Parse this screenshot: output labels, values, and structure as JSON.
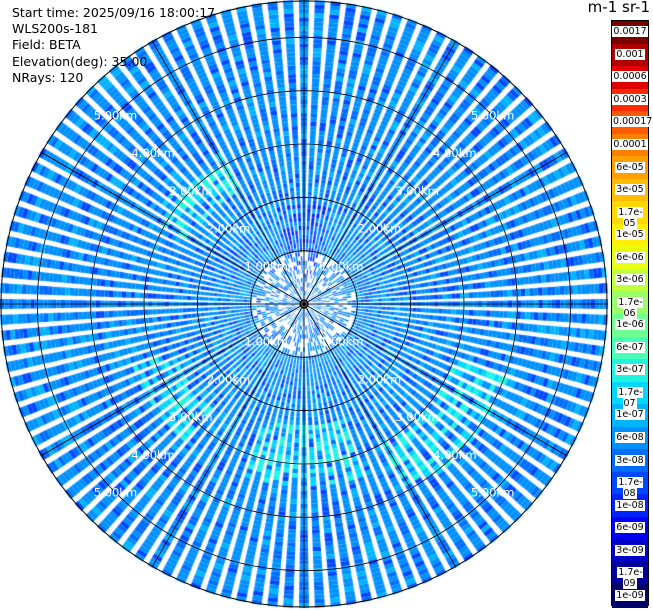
{
  "chart_data": {
    "type": "heatmap",
    "subtype": "radar-ppi",
    "info_lines": [
      "Start time: 2025/09/16 18:00:17",
      "WLS200s-181",
      "Field: BETA",
      "Elevation(deg): 35.00",
      "NRays: 120"
    ],
    "colorbar_title": "m-1 sr-1",
    "colorbar_labels": [
      "0.0017",
      "0.001",
      "0.0006",
      "0.0003",
      "0.00017",
      "0.0001",
      "6e-05",
      "3e-05",
      "1.7e-05",
      "1e-05",
      "6e-06",
      "3e-06",
      "1.7e-06",
      "1e-06",
      "6e-07",
      "3e-07",
      "1.7e-07",
      "1e-07",
      "6e-08",
      "3e-08",
      "1.7e-08",
      "1e-08",
      "6e-09",
      "3e-09",
      "1.7e-09",
      "1e-09"
    ],
    "colorbar_colors": [
      "#7a0000",
      "#b00000",
      "#e00000",
      "#ff2a00",
      "#ff5a00",
      "#ff8000",
      "#ff9f00",
      "#ffbc00",
      "#ffd800",
      "#fff000",
      "#e8ff10",
      "#c0ff40",
      "#98ff68",
      "#70ff90",
      "#48ffb8",
      "#20f4e0",
      "#00d8ff",
      "#00b4ff",
      "#0090ff",
      "#006cff",
      "#0048ff",
      "#0024ff",
      "#0000f4",
      "#0000c8",
      "#00009a",
      "#00006a"
    ],
    "range_rings": [
      {
        "label": "1.00km"
      },
      {
        "label": "2.00km"
      },
      {
        "label": "3.00km"
      },
      {
        "label": "4.00km"
      },
      {
        "label": "5.00km"
      }
    ],
    "max_range_km": 5.7,
    "azimuth_spokes_deg": [
      0,
      30,
      60,
      90,
      120,
      150,
      180,
      210,
      240,
      270,
      300,
      330
    ],
    "n_rays": 120,
    "dominant_value_range": [
      "6e-08",
      "1e-08"
    ],
    "enhanced_regions": [
      {
        "azimuth_start_deg": 110,
        "azimuth_end_deg": 150,
        "range_km": [
          3.0,
          4.0
        ],
        "value": "1e-07"
      },
      {
        "azimuth_start_deg": 160,
        "azimuth_end_deg": 200,
        "range_km": [
          2.2,
          3.4
        ],
        "value": "1e-07"
      },
      {
        "azimuth_start_deg": 220,
        "azimuth_end_deg": 250,
        "range_km": [
          2.6,
          3.4
        ],
        "value": "1e-07"
      },
      {
        "azimuth_start_deg": 300,
        "azimuth_end_deg": 330,
        "range_km": [
          2.4,
          3.2
        ],
        "value": "1e-07"
      }
    ],
    "low_region": {
      "azimuth_start_deg": 345,
      "azimuth_end_deg": 15,
      "range_km": [
        0.2,
        1.8
      ],
      "value": "1.7e-08"
    }
  }
}
